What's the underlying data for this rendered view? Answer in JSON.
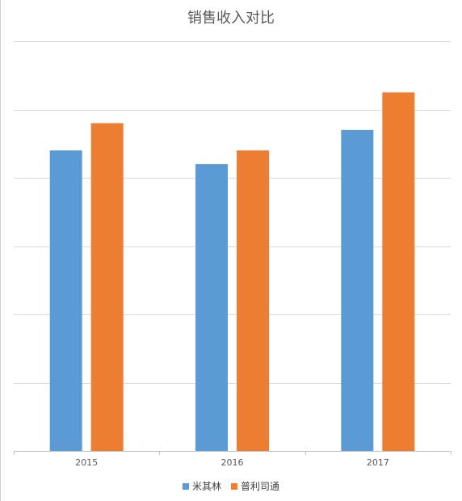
{
  "chart_data": {
    "type": "bar",
    "title": "销售收入对比",
    "categories": [
      "2015",
      "2016",
      "2017"
    ],
    "series": [
      {
        "name": "米其林",
        "color": "#5B9BD5",
        "values": [
          4.4,
          4.2,
          4.7
        ]
      },
      {
        "name": "普利司通",
        "color": "#ED7D31",
        "values": [
          4.8,
          4.4,
          5.25
        ]
      }
    ],
    "ylim": [
      0,
      6
    ],
    "grid": true,
    "y_tick_labels_visible": false,
    "legend": "bottom"
  }
}
